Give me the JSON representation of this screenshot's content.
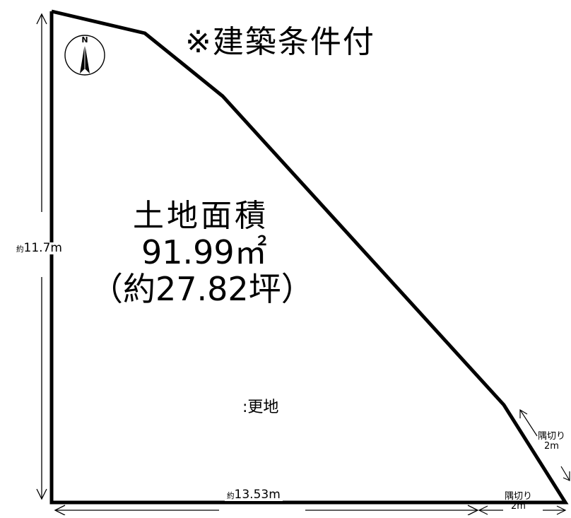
{
  "note": "※建築条件付",
  "area": {
    "title": "土地面積",
    "sqm": "91.99㎡",
    "tsubo": "（約27.82坪）"
  },
  "lot_status": ":更地",
  "dimensions": {
    "left_prefix": "約",
    "left_value": "11.7m",
    "bottom_prefix": "約",
    "bottom_value": "13.53m",
    "corner_cut_label": "隅切り",
    "corner_cut_value": "2m"
  },
  "compass": {
    "north_letter": "N",
    "icon": "north-arrow-icon"
  },
  "colors": {
    "outline": "#000000",
    "background": "#ffffff"
  }
}
